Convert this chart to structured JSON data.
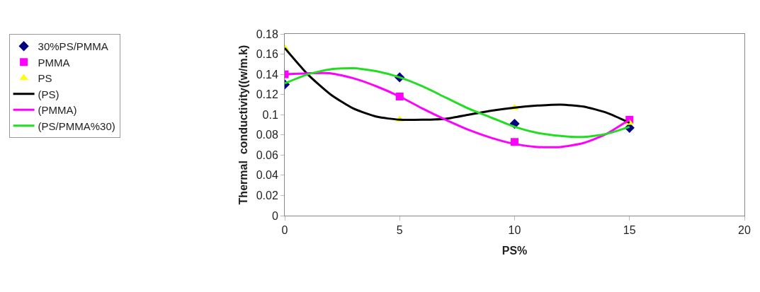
{
  "chart_data": {
    "type": "scatter",
    "xlabel": "PS%",
    "ylabel": "Thermal  conductivity((w/m.k)",
    "xlim": [
      0,
      20
    ],
    "xticks": [
      0,
      5,
      10,
      15,
      20
    ],
    "ylim": [
      0,
      0.18
    ],
    "yticks": [
      0,
      0.02,
      0.04,
      0.06,
      0.08,
      0.1,
      0.12,
      0.14,
      0.16,
      0.18
    ],
    "legend": "left",
    "series": [
      {
        "name": "30%PS/PMMA",
        "marker": "diamond",
        "color": "#000080",
        "x": [
          0,
          5,
          10,
          15
        ],
        "values": [
          0.13,
          0.137,
          0.091,
          0.087
        ]
      },
      {
        "name": "PMMA",
        "marker": "square",
        "color": "#ff00ff",
        "x": [
          0,
          5,
          10,
          15
        ],
        "values": [
          0.14,
          0.118,
          0.073,
          0.095
        ]
      },
      {
        "name": "PS",
        "marker": "triangle",
        "color": "#ffff00",
        "x": [
          0,
          5,
          10,
          15
        ],
        "values": [
          0.166,
          0.095,
          0.107,
          0.092
        ]
      },
      {
        "name": "(PS)",
        "type": "line",
        "marker": "none",
        "line_style": "solid",
        "color": "#000000",
        "x": [
          0,
          1,
          2,
          3,
          4,
          5,
          6,
          7,
          8,
          9,
          10,
          11,
          12,
          13,
          14,
          15
        ],
        "values": [
          0.166,
          0.14,
          0.12,
          0.106,
          0.098,
          0.095,
          0.095,
          0.096,
          0.1,
          0.104,
          0.107,
          0.109,
          0.11,
          0.108,
          0.102,
          0.092
        ]
      },
      {
        "name": "(PMMA)",
        "type": "line",
        "marker": "none",
        "line_style": "solid",
        "color": "#ff00ff",
        "x": [
          0,
          1,
          2,
          3,
          4,
          5,
          6,
          7,
          8,
          9,
          10,
          11,
          12,
          13,
          14,
          15
        ],
        "values": [
          0.14,
          0.141,
          0.141,
          0.136,
          0.128,
          0.118,
          0.106,
          0.095,
          0.085,
          0.077,
          0.071,
          0.068,
          0.068,
          0.072,
          0.081,
          0.095
        ]
      },
      {
        "name": "(PS/PMMA%30)",
        "type": "line",
        "marker": "none",
        "line_style": "solid",
        "color": "#22dd22",
        "x": [
          0,
          1,
          2,
          3,
          4,
          5,
          6,
          7,
          8,
          9,
          10,
          11,
          12,
          13,
          14,
          15
        ],
        "values": [
          0.131,
          0.14,
          0.145,
          0.146,
          0.143,
          0.137,
          0.128,
          0.117,
          0.106,
          0.097,
          0.088,
          0.082,
          0.079,
          0.078,
          0.081,
          0.088
        ]
      }
    ]
  }
}
